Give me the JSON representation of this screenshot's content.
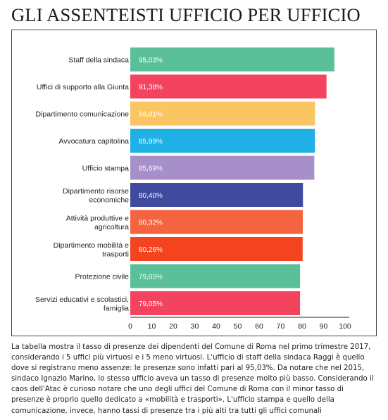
{
  "headline": "GLI ASSENTEISTI UFFICIO PER UFFICIO",
  "caption": "La tabella mostra il tasso di presenze dei dipendenti del Comune di Roma nel primo trimestre 2017, considerando i 5 uffici più virtuosi e i 5 meno virtuosi. L'ufficio di staff della sindaca Raggi è quello dove si registrano meno assenze: le presenze sono infatti pari al 95,03%. Da notare che nel 2015, sindaco Ignazio Marino, lo stesso ufficio aveva un tasso di presenze molto più basso. Considerando il caos dell'Atac è curioso notare che uno degli uffici del Comune di Roma con il minor tasso di presenze è proprio quello dedicato a «mobilità e trasporti». L'ufficio stampa e quello della comunicazione, invece, hanno tassi di presenze tra i più alti tra tutti gli uffici comunali",
  "chart_data": {
    "type": "bar",
    "orientation": "horizontal",
    "categories": [
      [
        "Staff della sindaca"
      ],
      [
        "Uffici di supporto alla Giunta"
      ],
      [
        "Dipartimento comunicazione"
      ],
      [
        "Avvocatura capitolina"
      ],
      [
        "Ufficio stampa"
      ],
      [
        "Dipartimento risorse",
        "economiche"
      ],
      [
        "Attività produttive e",
        "agricoltura"
      ],
      [
        "Dipartimento mobilità e",
        "trasporti"
      ],
      [
        "Protezione civile"
      ],
      [
        "Servizi educativi e scolastici,",
        "famiglia"
      ]
    ],
    "values": [
      95.03,
      91.38,
      86.01,
      85.99,
      85.69,
      80.4,
      80.32,
      80.26,
      79.05,
      79.05
    ],
    "value_labels": [
      "95,03%",
      "91,38%",
      "86,01%",
      "85,99%",
      "85,69%",
      "80,40%",
      "80,32%",
      "80,26%",
      "79,05%",
      "79,05%"
    ],
    "colors": [
      "#5bbf9a",
      "#f4435e",
      "#fbc564",
      "#1fb1e6",
      "#a78fc9",
      "#404a9e",
      "#f4643e",
      "#f4431f",
      "#5bbf9a",
      "#f4435e"
    ],
    "xticks": [
      "0",
      "10",
      "20",
      "30",
      "40",
      "50",
      "60",
      "70",
      "80",
      "90",
      "100"
    ],
    "xlim": [
      0,
      100
    ],
    "grid": false
  }
}
